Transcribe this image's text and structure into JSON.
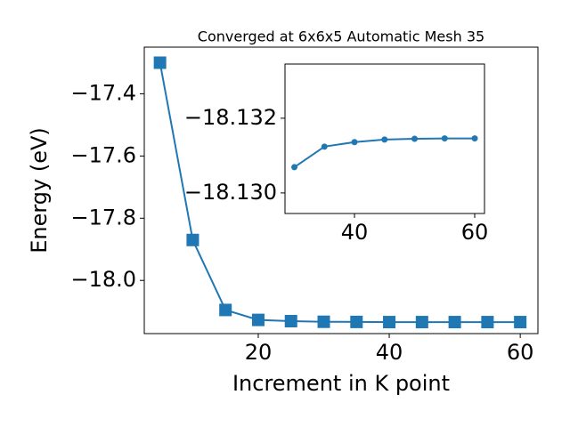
{
  "chart_data": [
    {
      "type": "line",
      "title": "Converged at 6x6x5 Automatic Mesh 35",
      "xlabel": "Increment in K point",
      "ylabel": "Energy (eV)",
      "x": [
        5,
        10,
        15,
        20,
        25,
        30,
        35,
        40,
        45,
        50,
        55,
        60
      ],
      "series": [
        {
          "color": "#1f77b4",
          "marker": "square",
          "values": [
            -17.3,
            -17.87,
            -18.095,
            -18.127,
            -18.131,
            -18.133,
            -18.1335,
            -18.134,
            -18.134,
            -18.134,
            -18.134,
            -18.134
          ]
        }
      ],
      "xlim": [
        2.6,
        62.7
      ],
      "xticks": [
        20,
        40,
        60
      ],
      "ylim": [
        -18.171,
        -17.25
      ],
      "yticks": [
        {
          "value": -17.4,
          "label": "−17.4"
        },
        {
          "value": -17.6,
          "label": "−17.6"
        },
        {
          "value": -17.8,
          "label": "−17.8"
        },
        {
          "value": -18.0,
          "label": "−18.0"
        }
      ]
    },
    {
      "type": "line",
      "x": [
        30,
        35,
        40,
        45,
        50,
        55,
        60
      ],
      "series": [
        {
          "color": "#1f77b4",
          "marker": "circle",
          "values": [
            -18.13069,
            -18.13124,
            -18.13136,
            -18.13143,
            -18.13145,
            -18.13146,
            -18.13146
          ]
        }
      ],
      "xlim": [
        28.44,
        61.63
      ],
      "xticks": [
        40,
        60
      ],
      "ylim": [
        -18.12945,
        -18.13345
      ],
      "y_inverted": true,
      "yticks": [
        {
          "value": -18.132,
          "label": "−18.132"
        },
        {
          "value": -18.13,
          "label": "−18.130"
        }
      ]
    }
  ]
}
